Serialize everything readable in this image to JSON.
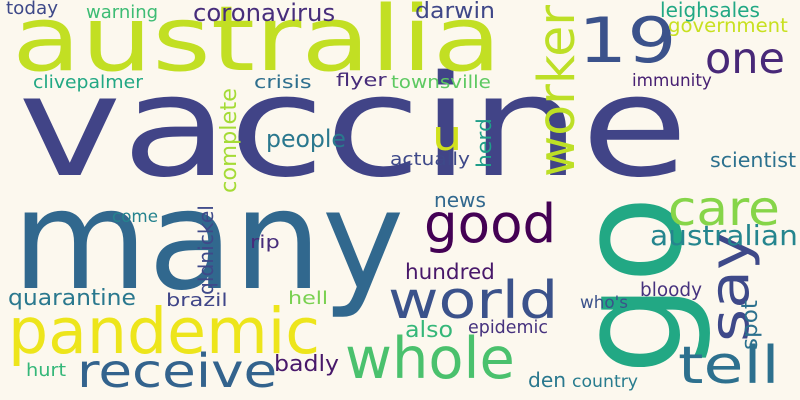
{
  "background": "#fcf8ee",
  "words": [
    {
      "text": "vaccine",
      "color": "#414487"
    },
    {
      "text": "many",
      "color": "#31688e"
    },
    {
      "text": "australia",
      "color": "#c2df23"
    },
    {
      "text": "go",
      "color": "#22a884"
    },
    {
      "text": "pandemic",
      "color": "#ede51b"
    },
    {
      "text": "world",
      "color": "#3b528b"
    },
    {
      "text": "19",
      "color": "#3b528b"
    },
    {
      "text": "good",
      "color": "#440154"
    },
    {
      "text": "whole",
      "color": "#4ac16d"
    },
    {
      "text": "receive",
      "color": "#33638d"
    },
    {
      "text": "worker",
      "color": "#bddf26"
    },
    {
      "text": "tell",
      "color": "#2d708e"
    },
    {
      "text": "say",
      "color": "#3e4989"
    },
    {
      "text": "care",
      "color": "#86d549"
    },
    {
      "text": "one",
      "color": "#482878"
    },
    {
      "text": "u",
      "color": "#d0e11c"
    },
    {
      "text": "people",
      "color": "#2a788e"
    },
    {
      "text": "australian",
      "color": "#25858e"
    },
    {
      "text": "coronavirus",
      "color": "#472d7b"
    },
    {
      "text": "government",
      "color": "#c8e020"
    },
    {
      "text": "darwin",
      "color": "#3f4788"
    },
    {
      "text": "complete",
      "color": "#a5db36"
    },
    {
      "text": "news",
      "color": "#31688e"
    },
    {
      "text": "hundred",
      "color": "#48186a"
    },
    {
      "text": "quarantine",
      "color": "#2a788e"
    },
    {
      "text": "badly",
      "color": "#48186a"
    },
    {
      "text": "den",
      "color": "#2a788e"
    },
    {
      "text": "also",
      "color": "#35b779"
    },
    {
      "text": "epidemic",
      "color": "#46327e"
    },
    {
      "text": "country",
      "color": "#287c8e"
    },
    {
      "text": "bloody",
      "color": "#46327e"
    },
    {
      "text": "who's",
      "color": "#3b528b"
    },
    {
      "text": "spot",
      "color": "#2c718e"
    },
    {
      "text": "leighsales",
      "color": "#22a884"
    },
    {
      "text": "immunity",
      "color": "#482173"
    },
    {
      "text": "scientist",
      "color": "#2c718e"
    },
    {
      "text": "actually",
      "color": "#3e4989"
    },
    {
      "text": "herd",
      "color": "#1f9e89"
    },
    {
      "text": "today",
      "color": "#3e4989"
    },
    {
      "text": "warning",
      "color": "#3dbc74"
    },
    {
      "text": "clivepalmer",
      "color": "#22a884"
    },
    {
      "text": "crisis",
      "color": "#2e6f8e"
    },
    {
      "text": "flyer",
      "color": "#472c7a"
    },
    {
      "text": "townsville",
      "color": "#5ec962"
    },
    {
      "text": "come",
      "color": "#25838e"
    },
    {
      "text": "rip",
      "color": "#472d7b"
    },
    {
      "text": "qldnickel",
      "color": "#3e4989"
    },
    {
      "text": "brazil",
      "color": "#404688"
    },
    {
      "text": "hell",
      "color": "#7ad151"
    },
    {
      "text": "hurt",
      "color": "#35b779"
    }
  ]
}
